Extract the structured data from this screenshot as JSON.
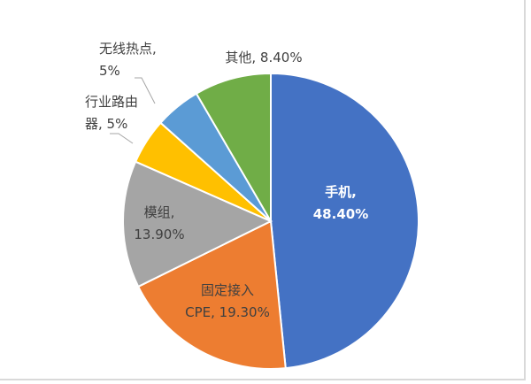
{
  "chart_data": {
    "type": "pie",
    "title": "",
    "start": "top, clockwise",
    "slices": [
      {
        "label_lines": [
          "手机,",
          "48.40%"
        ],
        "category": "手机",
        "value": 48.4,
        "color": "#4472C4"
      },
      {
        "label_lines": [
          "固定接入",
          "CPE, 19.30%"
        ],
        "category": "固定接入CPE",
        "value": 19.3,
        "color": "#ED7D31"
      },
      {
        "label_lines": [
          "模组,",
          "13.90%"
        ],
        "category": "模组",
        "value": 13.9,
        "color": "#A5A5A5"
      },
      {
        "label_lines": [
          "行业路由",
          "器, 5%"
        ],
        "category": "行业路由器",
        "value": 5,
        "color": "#FFC000"
      },
      {
        "label_lines": [
          "无线热点,",
          "5%"
        ],
        "category": "无线热点",
        "value": 5,
        "color": "#5B9BD5"
      },
      {
        "label_lines": [
          "其他, 8.40%"
        ],
        "category": "其他",
        "value": 8.4,
        "color": "#70AD47"
      }
    ]
  }
}
